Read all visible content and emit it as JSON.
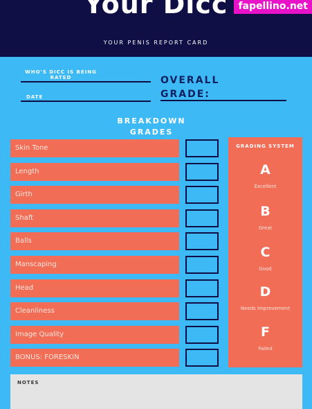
{
  "header": {
    "title": "Your Dicc",
    "subtitle": "YOUR PENIS REPORT CARD",
    "watermark": "fapellino.net"
  },
  "fields": {
    "rated": "WHO'S DICC IS BEING RATED",
    "date": "DATE",
    "overall": "OVERALL GRADE:"
  },
  "breakdown": {
    "title": "BREAKDOWN GRADES",
    "rows": [
      "Skin Tone",
      "Length",
      "Girth",
      "Shaft",
      "Balls",
      "Manscaping",
      "Head",
      "Cleanliness",
      "Image Quality",
      "BONUS: FORESKIN"
    ]
  },
  "grading": {
    "title": "GRADING SYSTEM",
    "grades": [
      {
        "letter": "A",
        "label": "Excellent"
      },
      {
        "letter": "B",
        "label": "Great"
      },
      {
        "letter": "C",
        "label": "Good"
      },
      {
        "letter": "D",
        "label": "Needs Improvement"
      },
      {
        "letter": "F",
        "label": "Failed"
      }
    ]
  },
  "notes": {
    "title": "NOTES"
  }
}
